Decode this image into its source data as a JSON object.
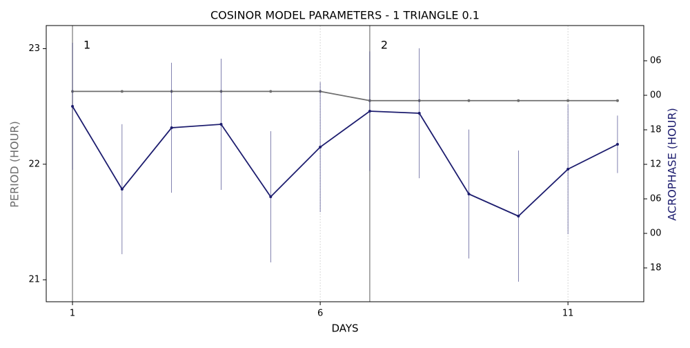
{
  "chart_data": {
    "type": "line",
    "title": "COSINOR MODEL PARAMETERS - 1 TRIANGLE 0.1",
    "x_label": "DAYS",
    "y_label": "PERIOD (HOUR)",
    "y2_label": "ACROPHASE (HOUR)",
    "x": [
      1,
      2,
      3,
      4,
      5,
      6,
      7,
      8,
      9,
      10,
      11,
      12
    ],
    "xlim": [
      0.47,
      12.53
    ],
    "xticks": [
      1,
      6,
      11
    ],
    "ylim": [
      20.81,
      23.2
    ],
    "yticks": [
      21,
      22,
      23
    ],
    "y2lim": [
      -11.88,
      36.12
    ],
    "y2ticks": [
      {
        "value": -6,
        "label": "18"
      },
      {
        "value": 0,
        "label": "00"
      },
      {
        "value": 6,
        "label": "06"
      },
      12,
      18,
      {
        "value": 24,
        "label": "00"
      },
      {
        "value": 30,
        "label": "06"
      }
    ],
    "x_grid": true,
    "markers": [
      {
        "x": 1,
        "label": "1"
      },
      {
        "x": 7,
        "label": "2"
      }
    ],
    "series": [
      {
        "color": "#6e6e6e",
        "values": [
          22.63,
          22.63,
          22.63,
          22.63,
          22.63,
          22.63,
          22.55,
          22.55,
          22.55,
          22.55,
          22.55,
          22.55
        ]
      },
      {
        "color": "#1c1c6e",
        "axis": "y2",
        "values": [
          22.08,
          7.68,
          18.36,
          18.96,
          6.36,
          15.0,
          21.24,
          20.88,
          6.84,
          3.0,
          11.16,
          15.48
        ],
        "errors": [
          11.04,
          11.3,
          11.3,
          11.4,
          11.4,
          11.3,
          10.4,
          11.3,
          11.2,
          11.4,
          11.3,
          5.0
        ]
      }
    ]
  }
}
